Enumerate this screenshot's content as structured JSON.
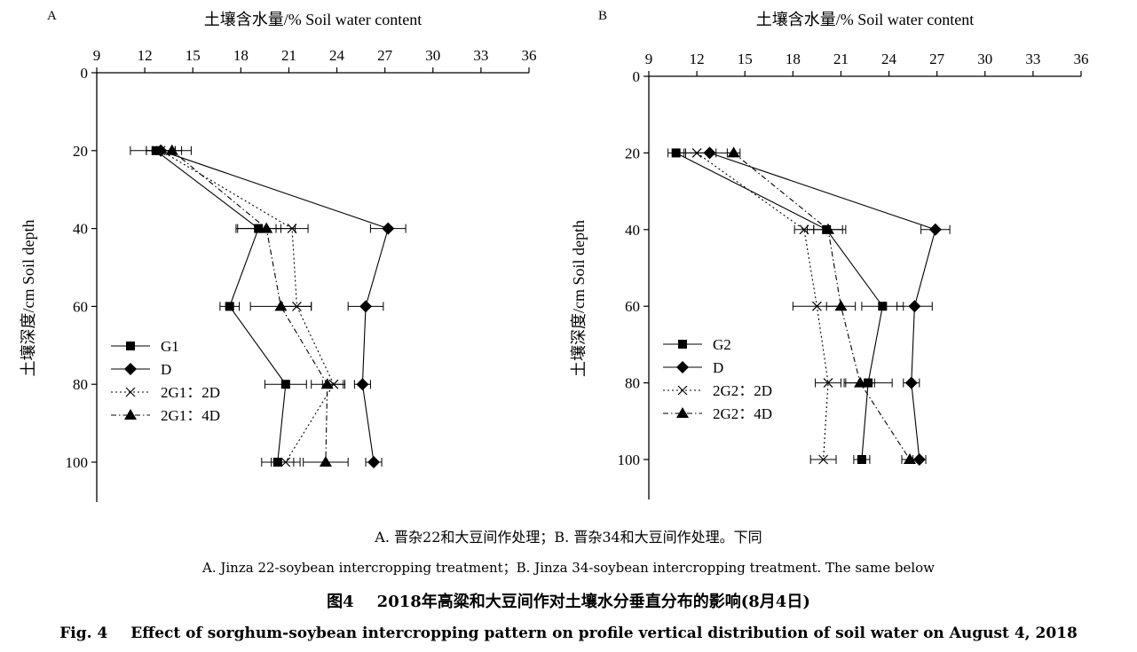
{
  "chart_data": [
    {
      "type": "line",
      "panel_label": "A",
      "xlabel": "土壤含水量/%  Soil water content",
      "ylabel": "土壤深度/cm  Soil depth",
      "x_axis_position": "top",
      "y_inverted": true,
      "xlim": [
        9,
        36
      ],
      "ylim": [
        0,
        110
      ],
      "xticks": [
        9,
        12,
        15,
        18,
        21,
        24,
        27,
        30,
        33,
        36
      ],
      "yticks": [
        0,
        20,
        40,
        60,
        80,
        100
      ],
      "grid": false,
      "legend_position": "bottom-left",
      "series": [
        {
          "name": "G1",
          "marker": "square",
          "line": "solid",
          "depth": [
            20,
            40,
            60,
            80,
            100
          ],
          "water": [
            12.7,
            19.1,
            17.3,
            20.8,
            20.3
          ],
          "err": [
            1.6,
            1.4,
            0.6,
            1.3,
            1.0
          ]
        },
        {
          "name": "D",
          "marker": "diamond",
          "line": "solid",
          "depth": [
            20,
            40,
            60,
            80,
            100
          ],
          "water": [
            13.0,
            27.2,
            25.8,
            25.6,
            26.3
          ],
          "err": [
            0.9,
            1.1,
            1.1,
            0.5,
            0.5
          ]
        },
        {
          "name": "2G1：2D",
          "marker": "x",
          "line": "dotted",
          "depth": [
            20,
            40,
            60,
            80,
            100
          ],
          "water": [
            13.0,
            21.2,
            21.5,
            23.8,
            20.8
          ],
          "err": [
            0.9,
            1.0,
            0.9,
            0.7,
            0.9
          ]
        },
        {
          "name": "2G1：4D",
          "marker": "triangle",
          "line": "dashdot",
          "depth": [
            20,
            40,
            60,
            80,
            100
          ],
          "water": [
            13.7,
            19.6,
            20.5,
            23.4,
            23.3
          ],
          "err": [
            1.2,
            1.8,
            1.9,
            1.0,
            1.4
          ]
        }
      ]
    },
    {
      "type": "line",
      "panel_label": "B",
      "xlabel": "土壤含水量/%  Soil water content",
      "ylabel": "土壤深度/cm  Soil depth",
      "x_axis_position": "top",
      "y_inverted": true,
      "xlim": [
        9,
        36
      ],
      "ylim": [
        0,
        110
      ],
      "xticks": [
        9,
        12,
        15,
        18,
        21,
        24,
        27,
        30,
        33,
        36
      ],
      "yticks": [
        0,
        20,
        40,
        60,
        80,
        100
      ],
      "grid": false,
      "legend_position": "bottom-left",
      "series": [
        {
          "name": "G2",
          "marker": "square",
          "line": "solid",
          "depth": [
            20,
            40,
            60,
            80,
            100
          ],
          "water": [
            10.7,
            20.1,
            23.6,
            22.7,
            22.3
          ],
          "err": [
            0.5,
            1.2,
            1.3,
            1.5,
            0.5
          ]
        },
        {
          "name": "D",
          "marker": "diamond",
          "line": "solid",
          "depth": [
            20,
            40,
            60,
            80,
            100
          ],
          "water": [
            12.8,
            26.9,
            25.6,
            25.4,
            25.9
          ],
          "err": [
            1.5,
            0.9,
            1.1,
            0.5,
            0.4
          ]
        },
        {
          "name": "2G2：2D",
          "marker": "x",
          "line": "dotted",
          "depth": [
            20,
            40,
            60,
            80,
            100
          ],
          "water": [
            12.0,
            18.7,
            19.5,
            20.2,
            19.9
          ],
          "err": [
            1.2,
            0.6,
            1.5,
            0.8,
            0.8
          ]
        },
        {
          "name": "2G2：4D",
          "marker": "triangle",
          "line": "dashdot",
          "depth": [
            20,
            40,
            60,
            80,
            100
          ],
          "water": [
            14.3,
            20.2,
            21.0,
            22.2,
            25.3
          ],
          "err": [
            0.4,
            0.9,
            0.9,
            0.9,
            0.5
          ]
        }
      ]
    }
  ],
  "captions": {
    "note_cn": "A. 晋杂22和大豆间作处理；B. 晋杂34和大豆间作处理。下同",
    "note_en": "A. Jinza 22-soybean intercropping treatment；B. Jinza 34-soybean intercropping treatment. The same below",
    "title_cn_label": "图4",
    "title_cn_text": "2018年高粱和大豆间作对土壤水分垂直分布的影响(8月4日)",
    "title_en_label": "Fig. 4",
    "title_en_text": "Effect of sorghum-soybean intercropping pattern on profile vertical distribution of soil water on August 4, 2018"
  }
}
